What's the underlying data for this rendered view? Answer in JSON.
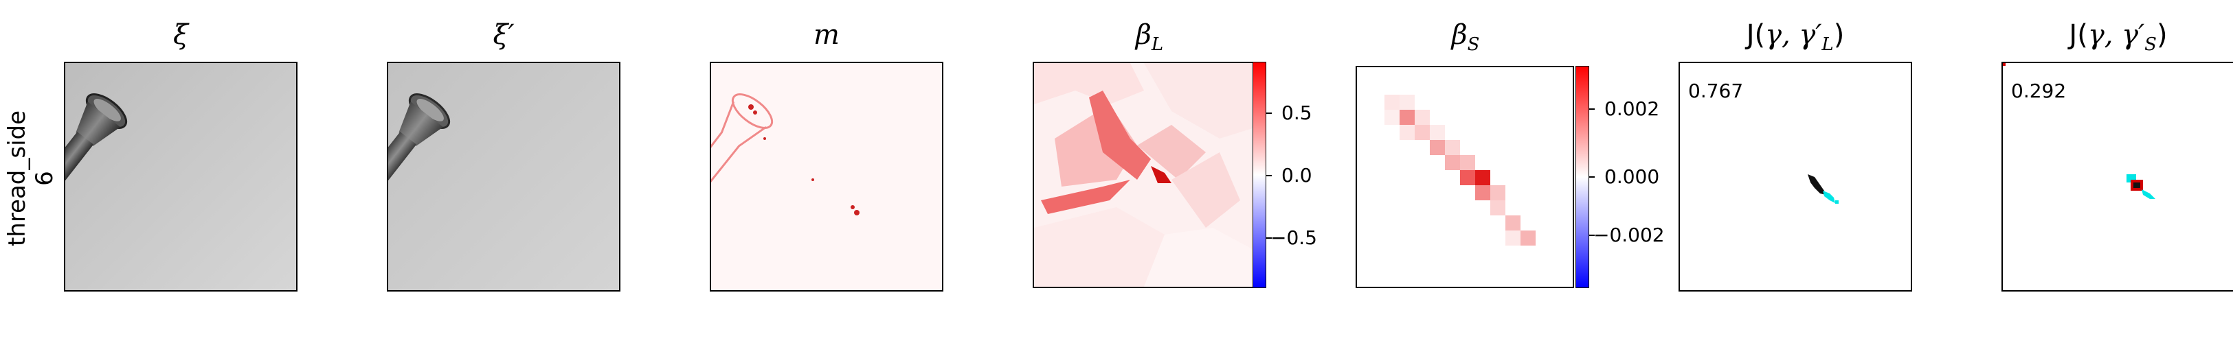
{
  "row_label": {
    "line1": "thread_side",
    "line2": "6"
  },
  "titles": {
    "xi": "ξ",
    "xi_prime": "ξ′",
    "m": "m",
    "beta_l": "β",
    "beta_l_sub": "L",
    "beta_s": "β",
    "beta_s_sub": "S",
    "j_l_prefix": "J(",
    "j_l_gamma": "γ, γ′",
    "j_l_sub": "L",
    "j_l_suffix": ")",
    "j_s_prefix": "J(",
    "j_s_gamma": "γ, γ′",
    "j_s_sub": "S",
    "j_s_suffix": ")"
  },
  "colorbar_l": {
    "ticks": [
      "0.5",
      "0.0",
      "−0.5"
    ],
    "colors": {
      "high": "#ff0000",
      "mid": "#ffffff",
      "low": "#0000ff"
    }
  },
  "colorbar_s": {
    "ticks": [
      "0.002",
      "0.000",
      "−0.002"
    ],
    "colors": {
      "high": "#ff0000",
      "mid": "#ffffff",
      "low": "#0000ff"
    }
  },
  "scores": {
    "j_l": "0.767",
    "j_s": "0.292"
  },
  "overlay_colors": {
    "gamma": "#000000",
    "gamma_prime": "#00e5e5",
    "overlap": "#e00000"
  }
}
